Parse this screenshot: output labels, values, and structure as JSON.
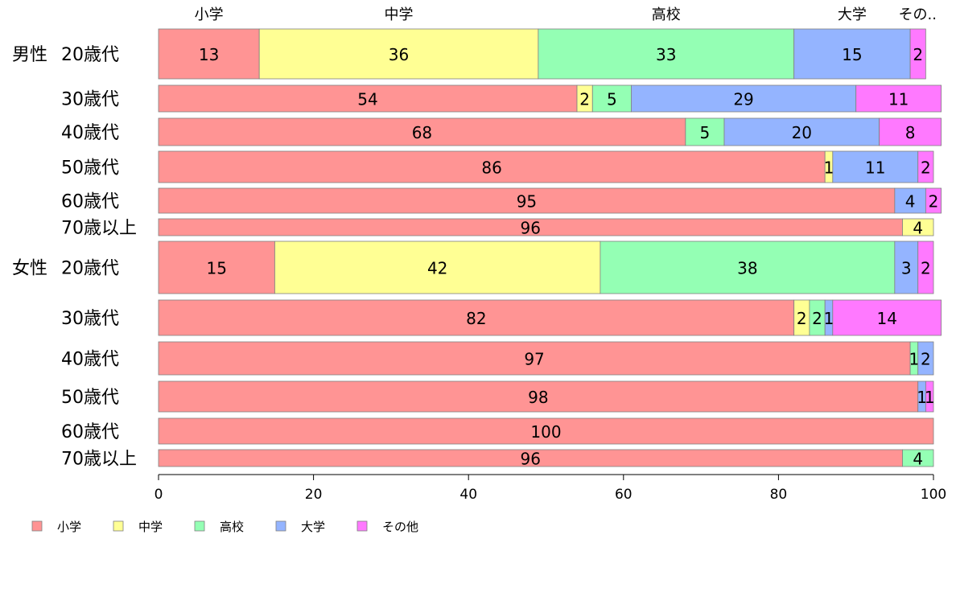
{
  "chart_data": {
    "type": "bar",
    "orientation": "horizontal",
    "stacked": true,
    "title": "",
    "xlabel": "",
    "ylabel": "",
    "xlim": [
      0,
      100
    ],
    "x_ticks": [
      0,
      20,
      40,
      60,
      80,
      100
    ],
    "grid": false,
    "legend_position": "bottom-left",
    "column_headers": [
      "小学",
      "中学",
      "高校",
      "大学",
      "その.."
    ],
    "series": [
      {
        "name": "小学",
        "color": "#ff9494"
      },
      {
        "name": "中学",
        "color": "#ffff94"
      },
      {
        "name": "高校",
        "color": "#94ffb4"
      },
      {
        "name": "大学",
        "color": "#94b4ff"
      },
      {
        "name": "その他",
        "color": "#ff79ff"
      }
    ],
    "rows": [
      {
        "group": "男性",
        "label": "20歳代",
        "values": [
          13,
          36,
          33,
          15,
          2
        ],
        "labels": [
          "13",
          "36",
          "33",
          "15",
          "2"
        ]
      },
      {
        "group": "",
        "label": "30歳代",
        "values": [
          54,
          2,
          5,
          29,
          11
        ],
        "labels": [
          "54",
          "2",
          "5",
          "29",
          "11"
        ]
      },
      {
        "group": "",
        "label": "40歳代",
        "values": [
          68,
          0,
          5,
          20,
          8
        ],
        "labels": [
          "68",
          "",
          "5",
          "20",
          "8"
        ]
      },
      {
        "group": "",
        "label": "50歳代",
        "values": [
          86,
          1,
          0,
          11,
          2
        ],
        "labels": [
          "86",
          "1",
          "",
          "11",
          "2"
        ]
      },
      {
        "group": "",
        "label": "60歳代",
        "values": [
          95,
          0,
          0,
          4,
          2
        ],
        "labels": [
          "95",
          "",
          "",
          "4",
          "2"
        ]
      },
      {
        "group": "",
        "label": "70歳以上",
        "values": [
          96,
          4,
          0,
          0,
          0
        ],
        "labels": [
          "96",
          "4",
          "",
          "",
          ""
        ]
      },
      {
        "group": "女性",
        "label": "20歳代",
        "values": [
          15,
          42,
          38,
          3,
          2
        ],
        "labels": [
          "15",
          "42",
          "38",
          "3",
          "2"
        ]
      },
      {
        "group": "",
        "label": "30歳代",
        "values": [
          82,
          2,
          2,
          1,
          14
        ],
        "labels": [
          "82",
          "2",
          "2",
          "1",
          "14"
        ]
      },
      {
        "group": "",
        "label": "40歳代",
        "values": [
          97,
          0,
          1,
          2,
          0
        ],
        "labels": [
          "97",
          "",
          "1",
          "2",
          ""
        ]
      },
      {
        "group": "",
        "label": "50歳代",
        "values": [
          98,
          0,
          0,
          1,
          1
        ],
        "labels": [
          "98",
          "",
          "",
          "1",
          "1"
        ]
      },
      {
        "group": "",
        "label": "60歳代",
        "values": [
          100,
          0,
          0,
          0,
          0
        ],
        "labels": [
          "100",
          "",
          "",
          "",
          ""
        ]
      },
      {
        "group": "",
        "label": "70歳以上",
        "values": [
          96,
          0,
          4,
          0,
          0
        ],
        "labels": [
          "96",
          "",
          "4",
          "",
          ""
        ]
      }
    ]
  }
}
